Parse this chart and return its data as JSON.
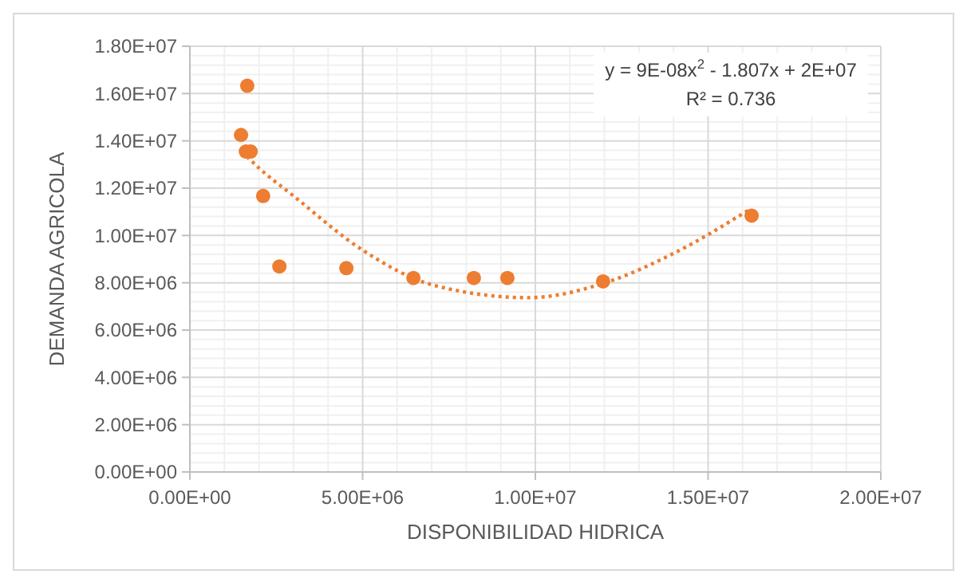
{
  "chart_data": {
    "type": "scatter",
    "xlabel": "DISPONIBILIDAD HIDRICA",
    "ylabel": "DEMANDA AGRICOLA",
    "xlim": [
      0,
      20000000
    ],
    "ylim": [
      0,
      18000000
    ],
    "xticks": [
      {
        "value": 0,
        "label": "0.00E+00"
      },
      {
        "value": 5000000,
        "label": "5.00E+06"
      },
      {
        "value": 10000000,
        "label": "1.00E+07"
      },
      {
        "value": 15000000,
        "label": "1.50E+07"
      },
      {
        "value": 20000000,
        "label": "2.00E+07"
      }
    ],
    "yticks": [
      {
        "value": 0,
        "label": "0.00E+00"
      },
      {
        "value": 2000000,
        "label": "2.00E+06"
      },
      {
        "value": 4000000,
        "label": "4.00E+06"
      },
      {
        "value": 6000000,
        "label": "6.00E+06"
      },
      {
        "value": 8000000,
        "label": "8.00E+06"
      },
      {
        "value": 10000000,
        "label": "1.00E+07"
      },
      {
        "value": 12000000,
        "label": "1.20E+07"
      },
      {
        "value": 14000000,
        "label": "1.40E+07"
      },
      {
        "value": 16000000,
        "label": "1.60E+07"
      },
      {
        "value": 18000000,
        "label": "1.80E+07"
      }
    ],
    "grid": true,
    "marker": "circle",
    "series": [
      {
        "color": "#ed7d31",
        "x": [
          1660000,
          1480000,
          1620000,
          1760000,
          2120000,
          2590000,
          4530000,
          6470000,
          8220000,
          9190000,
          11960000,
          16260000
        ],
        "values": [
          16330000,
          14250000,
          13550000,
          13550000,
          11670000,
          8690000,
          8620000,
          8200000,
          8200000,
          8200000,
          8060000,
          10840000
        ]
      },
      {
        "type": "line",
        "color": "#ed7d31",
        "line_style": "dotted",
        "marker": "none",
        "x": [
          1500000,
          2000000,
          3000000,
          5000000,
          7000000,
          9800000,
          12000000,
          14000000,
          16200000
        ],
        "values": [
          13550000,
          12850000,
          11670000,
          9380000,
          7920000,
          7370000,
          7990000,
          9240000,
          11100000
        ]
      }
    ],
    "annotations": [
      "y = 9E-08x$^{2}$ - 1.807x + 2E+07",
      "R² = 0.736"
    ]
  }
}
